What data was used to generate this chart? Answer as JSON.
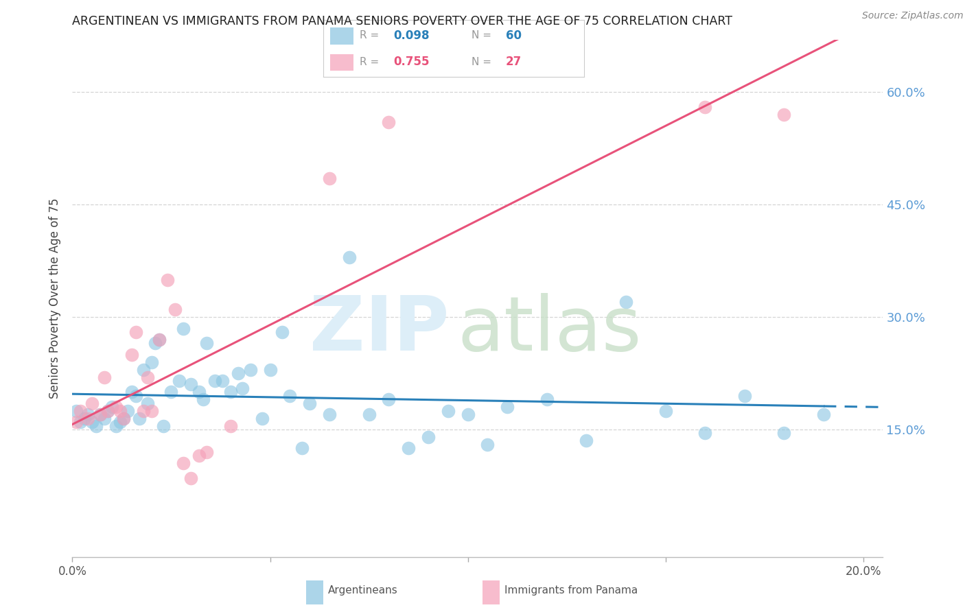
{
  "title": "ARGENTINEAN VS IMMIGRANTS FROM PANAMA SENIORS POVERTY OVER THE AGE OF 75 CORRELATION CHART",
  "source_text": "Source: ZipAtlas.com",
  "ylabel": "Seniors Poverty Over the Age of 75",
  "xlim": [
    0.0,
    0.205
  ],
  "ylim": [
    -0.02,
    0.67
  ],
  "yticks": [
    0.15,
    0.3,
    0.45,
    0.6
  ],
  "ytick_labels": [
    "15.0%",
    "30.0%",
    "45.0%",
    "60.0%"
  ],
  "xticks": [
    0.0,
    0.05,
    0.1,
    0.15,
    0.2
  ],
  "xtick_labels": [
    "0.0%",
    "",
    "",
    "",
    "20.0%"
  ],
  "blue_scatter_color": "#89c4e1",
  "pink_scatter_color": "#f4a0b8",
  "blue_line_color": "#2980b9",
  "pink_line_color": "#e8527a",
  "right_tick_color": "#5b9bd5",
  "watermark_zip_color": "#ddeef8",
  "watermark_atlas_color": "#c8dfc8",
  "background_color": "#ffffff",
  "grid_color": "#d5d5d5",
  "blue_r": "0.098",
  "blue_n": "60",
  "pink_r": "0.755",
  "pink_n": "27",
  "arg_x": [
    0.001,
    0.003,
    0.004,
    0.005,
    0.006,
    0.007,
    0.008,
    0.009,
    0.01,
    0.011,
    0.012,
    0.013,
    0.014,
    0.015,
    0.016,
    0.017,
    0.018,
    0.019,
    0.02,
    0.021,
    0.022,
    0.023,
    0.025,
    0.027,
    0.028,
    0.03,
    0.032,
    0.034,
    0.036,
    0.038,
    0.04,
    0.042,
    0.045,
    0.048,
    0.05,
    0.055,
    0.058,
    0.06,
    0.065,
    0.07,
    0.075,
    0.08,
    0.085,
    0.09,
    0.095,
    0.1,
    0.105,
    0.11,
    0.12,
    0.13,
    0.14,
    0.15,
    0.16,
    0.17,
    0.18,
    0.19,
    0.002,
    0.033,
    0.043,
    0.053
  ],
  "arg_y": [
    0.175,
    0.165,
    0.17,
    0.16,
    0.155,
    0.17,
    0.165,
    0.175,
    0.18,
    0.155,
    0.16,
    0.165,
    0.175,
    0.2,
    0.195,
    0.165,
    0.23,
    0.185,
    0.24,
    0.265,
    0.27,
    0.155,
    0.2,
    0.215,
    0.285,
    0.21,
    0.2,
    0.265,
    0.215,
    0.215,
    0.2,
    0.225,
    0.23,
    0.165,
    0.23,
    0.195,
    0.125,
    0.185,
    0.17,
    0.38,
    0.17,
    0.19,
    0.125,
    0.14,
    0.175,
    0.17,
    0.13,
    0.18,
    0.19,
    0.135,
    0.32,
    0.175,
    0.145,
    0.195,
    0.145,
    0.17,
    0.16,
    0.19,
    0.205,
    0.28
  ],
  "pan_x": [
    0.001,
    0.002,
    0.004,
    0.005,
    0.007,
    0.008,
    0.009,
    0.011,
    0.012,
    0.013,
    0.015,
    0.016,
    0.018,
    0.019,
    0.02,
    0.022,
    0.024,
    0.026,
    0.028,
    0.03,
    0.032,
    0.034,
    0.04,
    0.065,
    0.08,
    0.16,
    0.18
  ],
  "pan_y": [
    0.16,
    0.175,
    0.165,
    0.185,
    0.17,
    0.22,
    0.175,
    0.18,
    0.175,
    0.165,
    0.25,
    0.28,
    0.175,
    0.22,
    0.175,
    0.27,
    0.35,
    0.31,
    0.105,
    0.085,
    0.115,
    0.12,
    0.155,
    0.485,
    0.56,
    0.58,
    0.57
  ]
}
